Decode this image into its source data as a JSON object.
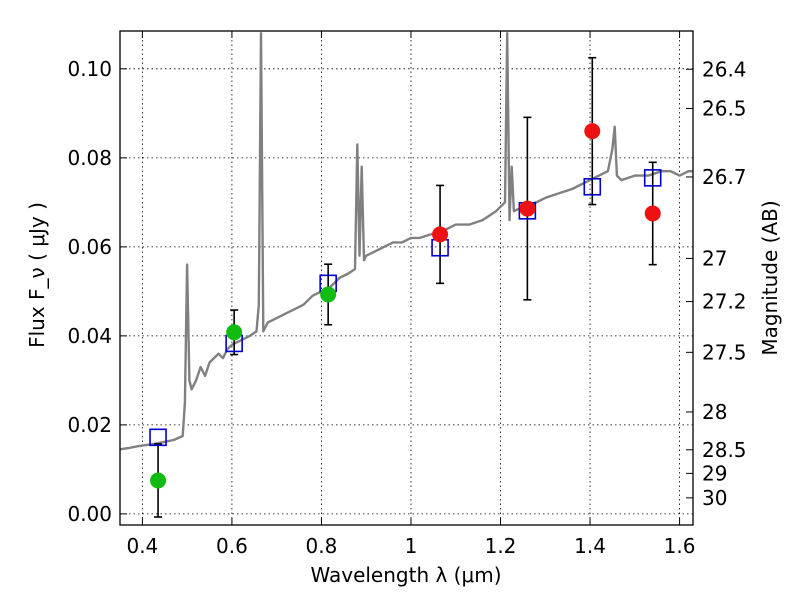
{
  "chart_data": {
    "type": "scatter",
    "xlabel": "Wavelength  λ (μm)",
    "ylabel": "Flux  F_ν  ( μJy )",
    "ylabel2": "Magnitude (AB)",
    "xlim": [
      0.35,
      1.63
    ],
    "ylim": [
      -0.0025,
      0.1085
    ],
    "grid": true,
    "x_ticks": [
      0.4,
      0.6,
      0.8,
      1,
      1.2,
      1.4,
      1.6
    ],
    "x_tick_labels": [
      "0.4",
      "0.6",
      "0.8",
      "1",
      "1.2",
      "1.4",
      "1.6"
    ],
    "y_ticks": [
      0.0,
      0.02,
      0.04,
      0.06,
      0.08,
      0.1
    ],
    "y_tick_labels": [
      "0.00",
      "0.02",
      "0.04",
      "0.06",
      "0.08",
      "0.10"
    ],
    "right_ticks": [
      {
        "label": "26.4",
        "flux": 0.0999
      },
      {
        "label": "26.5",
        "flux": 0.0911
      },
      {
        "label": "26.7",
        "flux": 0.0757
      },
      {
        "label": "27",
        "flux": 0.0574
      },
      {
        "label": "27.2",
        "flux": 0.0477
      },
      {
        "label": "27.5",
        "flux": 0.0363
      },
      {
        "label": "28",
        "flux": 0.0229
      },
      {
        "label": "28.5",
        "flux": 0.0144
      },
      {
        "label": "29",
        "flux": 0.0091
      },
      {
        "label": "30",
        "flux": 0.0036
      }
    ],
    "colors": {
      "spectrum": "#808080",
      "model": "#0000cc",
      "green": "#11bb11",
      "red": "#ee1111",
      "errorbar": "#000000"
    },
    "series": [
      {
        "kind": "spectrum",
        "x": [
          0.35,
          0.37,
          0.39,
          0.41,
          0.43,
          0.45,
          0.47,
          0.49,
          0.495,
          0.5,
          0.505,
          0.51,
          0.52,
          0.53,
          0.54,
          0.55,
          0.56,
          0.57,
          0.58,
          0.59,
          0.6,
          0.62,
          0.64,
          0.655,
          0.66,
          0.665,
          0.67,
          0.675,
          0.68,
          0.7,
          0.72,
          0.74,
          0.76,
          0.78,
          0.8,
          0.82,
          0.84,
          0.86,
          0.875,
          0.88,
          0.885,
          0.89,
          0.895,
          0.9,
          0.92,
          0.94,
          0.96,
          0.98,
          1.0,
          1.02,
          1.05,
          1.08,
          1.1,
          1.13,
          1.16,
          1.19,
          1.21,
          1.215,
          1.22,
          1.225,
          1.23,
          1.25,
          1.28,
          1.3,
          1.33,
          1.36,
          1.38,
          1.4,
          1.42,
          1.44,
          1.45,
          1.455,
          1.46,
          1.47,
          1.5,
          1.53,
          1.56,
          1.58,
          1.6,
          1.62,
          1.63
        ],
        "y": [
          0.0145,
          0.0148,
          0.0152,
          0.0155,
          0.0158,
          0.0162,
          0.0166,
          0.0175,
          0.025,
          0.056,
          0.03,
          0.028,
          0.03,
          0.033,
          0.031,
          0.034,
          0.035,
          0.036,
          0.035,
          0.037,
          0.038,
          0.039,
          0.04,
          0.041,
          0.047,
          0.108,
          0.041,
          0.042,
          0.043,
          0.044,
          0.045,
          0.046,
          0.047,
          0.049,
          0.05,
          0.051,
          0.053,
          0.054,
          0.055,
          0.083,
          0.058,
          0.078,
          0.057,
          0.058,
          0.059,
          0.06,
          0.061,
          0.061,
          0.062,
          0.062,
          0.063,
          0.064,
          0.065,
          0.065,
          0.066,
          0.068,
          0.07,
          0.108,
          0.066,
          0.078,
          0.068,
          0.069,
          0.07,
          0.071,
          0.072,
          0.073,
          0.074,
          0.075,
          0.076,
          0.077,
          0.082,
          0.087,
          0.076,
          0.075,
          0.076,
          0.076,
          0.077,
          0.077,
          0.076,
          0.077,
          0.077
        ]
      },
      {
        "kind": "model",
        "marker": "open-square",
        "x": [
          0.435,
          0.605,
          0.815,
          1.065,
          1.26,
          1.405,
          1.54
        ],
        "y": [
          0.0172,
          0.0383,
          0.0518,
          0.0598,
          0.0681,
          0.0735,
          0.0755
        ]
      },
      {
        "kind": "measured-green",
        "marker": "filled-circle",
        "x": [
          0.435,
          0.605,
          0.815
        ],
        "y": [
          0.0075,
          0.0408,
          0.0493
        ],
        "yerr": [
          0.0082,
          0.005,
          0.0068
        ]
      },
      {
        "kind": "measured-red",
        "marker": "filled-circle",
        "x": [
          1.065,
          1.26,
          1.405,
          1.54
        ],
        "y": [
          0.0628,
          0.0686,
          0.086,
          0.0675
        ],
        "yerr": [
          0.011,
          0.0205,
          0.0165,
          0.0115
        ]
      }
    ]
  }
}
